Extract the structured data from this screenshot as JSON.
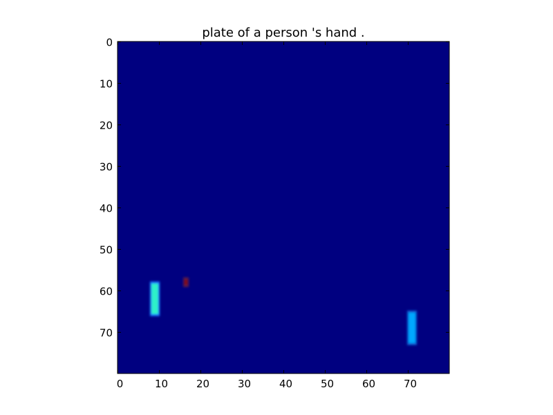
{
  "chart_data": {
    "type": "heatmap",
    "title": "plate of a person 's hand .",
    "xlabel": "",
    "ylabel": "",
    "grid_size": [
      80,
      80
    ],
    "xlim": [
      0,
      80
    ],
    "ylim": [
      80,
      0
    ],
    "x_ticks": [
      0,
      10,
      20,
      30,
      40,
      50,
      60,
      70
    ],
    "y_ticks": [
      0,
      10,
      20,
      30,
      40,
      50,
      60,
      70
    ],
    "colormap": "jet",
    "background_value": 0.0,
    "background_color": "#000080",
    "blobs": [
      {
        "name": "left-bar",
        "x": [
          8,
          10
        ],
        "y": [
          58,
          66
        ],
        "value": 0.55,
        "color": "#2ef2c8",
        "edge_color": "#1a73ff"
      },
      {
        "name": "small-dot",
        "x": [
          16,
          17
        ],
        "y": [
          57,
          59
        ],
        "value": 1.0,
        "color": "#800000",
        "edge_color": "#5a1a4a"
      },
      {
        "name": "right-bar",
        "x": [
          70,
          72
        ],
        "y": [
          65,
          73
        ],
        "value": 0.35,
        "color": "#00a8ff",
        "edge_color": "#0a5ad0"
      }
    ]
  }
}
